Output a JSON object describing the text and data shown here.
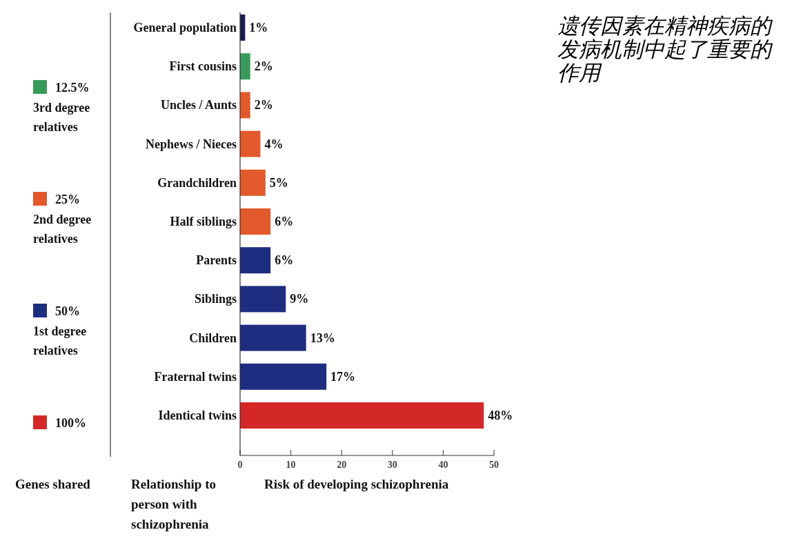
{
  "chart_data": {
    "type": "bar",
    "orientation": "horizontal",
    "categories": [
      "General population",
      "First cousins",
      "Uncles / Aunts",
      "Nephews / Nieces",
      "Grandchildren",
      "Half siblings",
      "Parents",
      "Siblings",
      "Children",
      "Fraternal twins",
      "Identical twins"
    ],
    "series": [
      {
        "name": "12.5%",
        "color": "#3a9a5c",
        "values": [
          null,
          2,
          null,
          null,
          null,
          null,
          null,
          null,
          null,
          null,
          null
        ],
        "value_labels": [
          null,
          "2%",
          null,
          null,
          null,
          null,
          null,
          null,
          null,
          null,
          null
        ]
      },
      {
        "name": "25%",
        "color": "#e2592b",
        "values": [
          null,
          null,
          2,
          4,
          5,
          6,
          null,
          null,
          null,
          null,
          null
        ],
        "value_labels": [
          null,
          null,
          "2%",
          "4%",
          "5%",
          "6%",
          null,
          null,
          null,
          null,
          null
        ]
      },
      {
        "name": "50%",
        "color": "#1f2d80",
        "values": [
          null,
          null,
          null,
          null,
          null,
          null,
          6,
          9,
          13,
          17,
          null
        ],
        "value_labels": [
          null,
          null,
          null,
          null,
          null,
          null,
          "6%",
          "9%",
          "13%",
          "17%",
          null
        ]
      },
      {
        "name": "100%",
        "color": "#d42828",
        "values": [
          null,
          null,
          null,
          null,
          null,
          null,
          null,
          null,
          null,
          null,
          48
        ],
        "value_labels": [
          null,
          null,
          null,
          null,
          null,
          null,
          null,
          null,
          null,
          null,
          "48%"
        ]
      },
      {
        "color": "#1a1d4e",
        "values": [
          1,
          null,
          null,
          null,
          null,
          null,
          null,
          null,
          null,
          null,
          null
        ],
        "value_labels": [
          "1%",
          null,
          null,
          null,
          null,
          null,
          null,
          null,
          null,
          null,
          null
        ]
      }
    ],
    "xlim": [
      0,
      50
    ],
    "xticks": [
      0,
      10,
      20,
      30,
      40,
      50
    ],
    "xlabel": "Risk of developing schizophrenia",
    "ylabel": "Relationship to person with schizophrenia",
    "legend_title": "Genes shared",
    "legend": "left",
    "grid": false,
    "annotations": [
      "3rd degree relatives",
      "2nd degree relatives",
      "1st degree relatives",
      "遗传因素在精神疾病的发病机制中起了重要的作用"
    ]
  }
}
